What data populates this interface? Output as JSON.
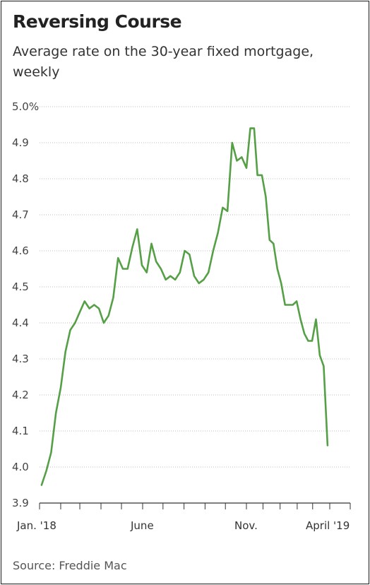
{
  "chart_data": {
    "type": "line",
    "title": "Reversing Course",
    "subtitle": "Average rate on the 30-year fixed mortgage, weekly",
    "source": "Source: Freddie Mac",
    "y_tick_labels": [
      "5.0%",
      "4.9",
      "4.8",
      "4.7",
      "4.6",
      "4.5",
      "4.4",
      "4.3",
      "4.2",
      "4.1",
      "4.0",
      "3.9"
    ],
    "y_tick_values": [
      5.0,
      4.9,
      4.8,
      4.7,
      4.6,
      4.5,
      4.4,
      4.3,
      4.2,
      4.1,
      4.0,
      3.9
    ],
    "ylim": [
      3.9,
      5.0
    ],
    "x_tick_labels": [
      "Jan. '18",
      "June",
      "Nov.",
      "April '19"
    ],
    "x_tick_dates": [
      "2018-01-01",
      "2018-06-01",
      "2018-11-01",
      "2019-04-01"
    ],
    "xlim": [
      "2018-01-01",
      "2019-04-15"
    ],
    "grid": "horizontal dotted",
    "legend": "none",
    "colors": {
      "line": "#55a046",
      "grid": "#bdbdbd",
      "axis": "#333333"
    },
    "series": [
      {
        "x": [
          "2018-01-04",
          "2018-01-11",
          "2018-01-18",
          "2018-01-25",
          "2018-02-01",
          "2018-02-08",
          "2018-02-15",
          "2018-02-22",
          "2018-03-01",
          "2018-03-08",
          "2018-03-15",
          "2018-03-22",
          "2018-03-29",
          "2018-04-05",
          "2018-04-12",
          "2018-04-19",
          "2018-04-26",
          "2018-05-03",
          "2018-05-10",
          "2018-05-17",
          "2018-05-24",
          "2018-05-31",
          "2018-06-07",
          "2018-06-14",
          "2018-06-21",
          "2018-06-28",
          "2018-07-05",
          "2018-07-12",
          "2018-07-19",
          "2018-07-26",
          "2018-08-02",
          "2018-08-09",
          "2018-08-16",
          "2018-08-23",
          "2018-08-30",
          "2018-09-06",
          "2018-09-13",
          "2018-09-20",
          "2018-09-27",
          "2018-10-04",
          "2018-10-11",
          "2018-10-18",
          "2018-10-25",
          "2018-11-01",
          "2018-11-08",
          "2018-11-15",
          "2018-11-21",
          "2018-11-29",
          "2018-12-06",
          "2018-12-13",
          "2018-12-20",
          "2018-12-27",
          "2019-01-03",
          "2019-01-10",
          "2019-01-17",
          "2019-01-24",
          "2019-01-31",
          "2019-02-07",
          "2019-02-14",
          "2019-02-21",
          "2019-02-28",
          "2019-03-07",
          "2019-03-14",
          "2019-03-21",
          "2019-03-28"
        ],
        "values": [
          3.95,
          3.99,
          4.04,
          4.15,
          4.22,
          4.32,
          4.38,
          4.4,
          4.43,
          4.46,
          4.44,
          4.45,
          4.44,
          4.4,
          4.42,
          4.47,
          4.58,
          4.55,
          4.55,
          4.61,
          4.66,
          4.56,
          4.54,
          4.62,
          4.57,
          4.55,
          4.52,
          4.53,
          4.52,
          4.54,
          4.6,
          4.59,
          4.53,
          4.51,
          4.52,
          4.54,
          4.6,
          4.65,
          4.72,
          4.71,
          4.9,
          4.85,
          4.86,
          4.83,
          4.94,
          4.94,
          4.81,
          4.81,
          4.75,
          4.63,
          4.62,
          4.55,
          4.51,
          4.45,
          4.45,
          4.45,
          4.46,
          4.41,
          4.37,
          4.35,
          4.35,
          4.41,
          4.31,
          4.28,
          4.06
        ]
      }
    ]
  }
}
